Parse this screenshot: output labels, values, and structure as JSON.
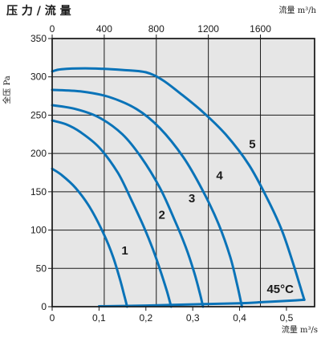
{
  "chart_data": {
    "type": "line",
    "title": "压 力 / 流 量",
    "ylabel": "全压 Pa",
    "xlabel": "流量 m³/s",
    "x2label": "流量 m³/h",
    "xlim": [
      0,
      0.56
    ],
    "ylim": [
      0,
      350
    ],
    "x2lim": [
      0,
      2016
    ],
    "xticks": [
      0,
      0.1,
      0.2,
      0.3,
      0.4,
      0.5
    ],
    "xtick_labels": [
      "0",
      "0,1",
      "0,2",
      "0,3",
      "0,4",
      "0,5"
    ],
    "x2ticks": [
      0,
      400,
      800,
      1200,
      1600
    ],
    "x2tick_labels": [
      "0",
      "400",
      "800",
      "1200",
      "1600"
    ],
    "yticks": [
      0,
      50,
      100,
      150,
      200,
      250,
      300,
      350
    ],
    "ytick_labels": [
      "0",
      "50",
      "100",
      "150",
      "200",
      "250",
      "300",
      "350"
    ],
    "grid": true,
    "curve_color": "#0a73b8",
    "background": "#e6e6e6",
    "series": [
      {
        "name": "1",
        "x": [
          0,
          0.02,
          0.05,
          0.08,
          0.11,
          0.13,
          0.145,
          0.155,
          0.16
        ],
        "y": [
          180,
          172,
          155,
          130,
          95,
          65,
          35,
          12,
          0
        ]
      },
      {
        "name": "2",
        "x": [
          0,
          0.03,
          0.06,
          0.1,
          0.14,
          0.17,
          0.195,
          0.215,
          0.232,
          0.245,
          0.254
        ],
        "y": [
          243,
          238,
          228,
          208,
          175,
          138,
          105,
          75,
          45,
          20,
          0
        ]
      },
      {
        "name": "3",
        "x": [
          0,
          0.05,
          0.1,
          0.15,
          0.19,
          0.23,
          0.26,
          0.285,
          0.303,
          0.315,
          0.322
        ],
        "y": [
          263,
          258,
          247,
          225,
          195,
          155,
          115,
          78,
          45,
          18,
          0
        ]
      },
      {
        "name": "4",
        "x": [
          0,
          0.06,
          0.12,
          0.18,
          0.23,
          0.28,
          0.32,
          0.355,
          0.38,
          0.395,
          0.405
        ],
        "y": [
          283,
          281,
          274,
          258,
          233,
          195,
          153,
          108,
          65,
          28,
          0
        ]
      },
      {
        "name": "5",
        "x": [
          0,
          0.02,
          0.08,
          0.15,
          0.2,
          0.235,
          0.27,
          0.32,
          0.37,
          0.42,
          0.46,
          0.49,
          0.515,
          0.53,
          0.538
        ],
        "y": [
          307,
          310,
          311,
          309,
          306,
          296,
          280,
          255,
          225,
          185,
          140,
          100,
          55,
          25,
          9
        ]
      },
      {
        "name": "45°C",
        "x": [
          0.1,
          0.2,
          0.3,
          0.4,
          0.45,
          0.5,
          0.538
        ],
        "y": [
          0.5,
          1.5,
          3,
          4.5,
          6,
          7.5,
          9
        ]
      }
    ],
    "curve_labels": [
      {
        "text": "1",
        "x": 0.148,
        "y": 68
      },
      {
        "text": "2",
        "x": 0.227,
        "y": 115
      },
      {
        "text": "3",
        "x": 0.291,
        "y": 136
      },
      {
        "text": "4",
        "x": 0.35,
        "y": 166
      },
      {
        "text": "5",
        "x": 0.42,
        "y": 207
      },
      {
        "text": "45°C",
        "x": 0.458,
        "y": 18
      }
    ]
  }
}
